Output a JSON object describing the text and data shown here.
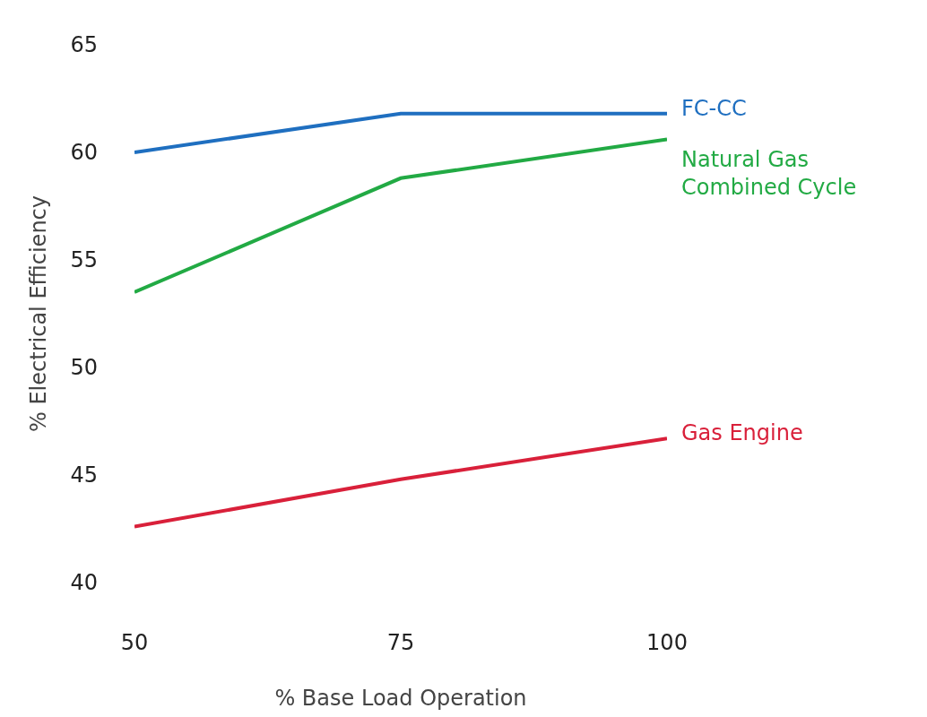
{
  "chart_data": {
    "type": "line",
    "xlabel": "% Base Load Operation",
    "ylabel": "% Electrical Efficiency",
    "x": [
      50,
      75,
      100
    ],
    "xlim": [
      50,
      100
    ],
    "xticks": [
      50,
      75,
      100
    ],
    "ylim": [
      40,
      65
    ],
    "yticks": [
      40,
      45,
      50,
      55,
      60,
      65
    ],
    "legend": false,
    "marker": "none",
    "line_style": "solid",
    "series": [
      {
        "name": "FC-CC",
        "color": "#1f6fc0",
        "values": [
          60.0,
          61.8,
          61.8
        ]
      },
      {
        "name": "Natural Gas\nCombined Cycle",
        "color": "#22aa44",
        "values": [
          53.5,
          58.8,
          60.6
        ]
      },
      {
        "name": "Gas Engine",
        "color": "#d9203a",
        "values": [
          42.6,
          44.8,
          46.7
        ]
      }
    ]
  }
}
